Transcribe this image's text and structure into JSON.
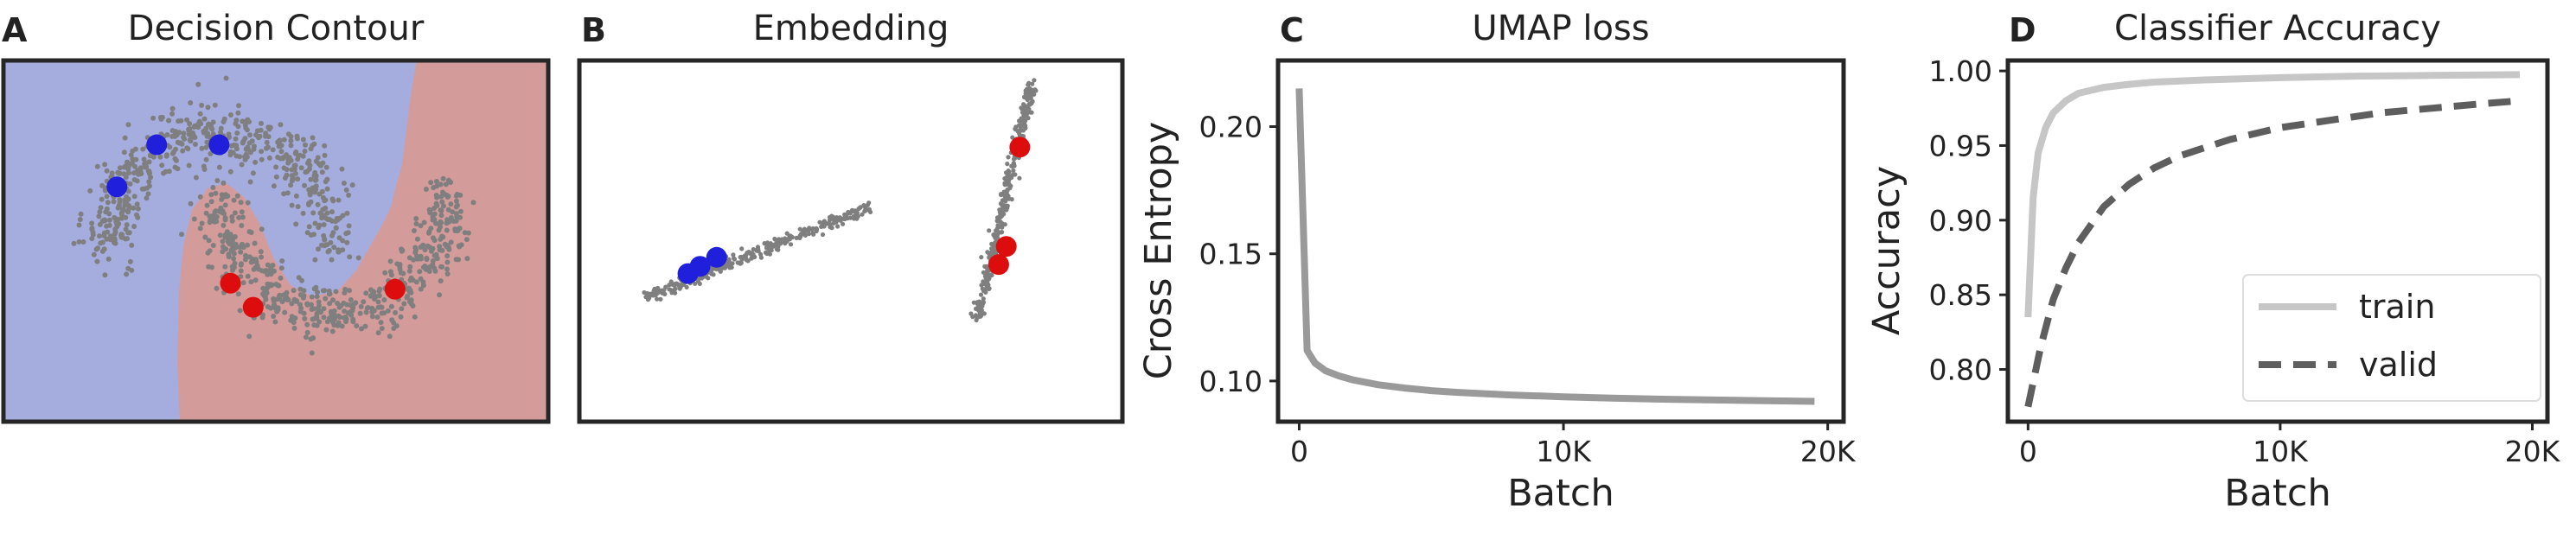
{
  "panels": {
    "a": {
      "letter": "A",
      "title": "Decision Contour"
    },
    "b": {
      "letter": "B",
      "title": "Embedding"
    },
    "c": {
      "letter": "C",
      "title": "UMAP loss"
    },
    "d": {
      "letter": "D",
      "title": "Classifier Accuracy"
    }
  },
  "colors": {
    "class0_region": "#a5addf",
    "class1_region": "#d49b9b",
    "class0_point": "#1f1fdc",
    "class1_point": "#dd0d0d",
    "sample_point": "#7f7f7f",
    "train_line": "#c6c6c6",
    "valid_line": "#5e5e5e",
    "loss_line": "#9a9a9a"
  },
  "chart_data": [
    {
      "type": "scatter",
      "panel": "A",
      "title": "Decision Contour",
      "description_free": true,
      "class0_labeled": [
        [
          -0.9,
          0.55
        ],
        [
          -0.55,
          0.9
        ],
        [
          0.0,
          0.9
        ]
      ],
      "class1_labeled": [
        [
          0.1,
          -0.25
        ],
        [
          0.3,
          -0.45
        ],
        [
          1.55,
          -0.3
        ]
      ],
      "xlim": [
        -1.9,
        2.9
      ],
      "ylim": [
        -1.4,
        1.6
      ],
      "ticks": false
    },
    {
      "type": "scatter",
      "panel": "B",
      "title": "Embedding",
      "class0_labeled": [
        [
          -2.4,
          0.1
        ],
        [
          -2.0,
          0.3
        ],
        [
          -1.45,
          0.55
        ]
      ],
      "class1_labeled": [
        [
          8.6,
          3.6
        ],
        [
          8.15,
          0.85
        ],
        [
          7.9,
          0.35
        ]
      ],
      "xlim": [
        -6,
        12
      ],
      "ylim": [
        -4,
        6
      ],
      "ticks": false
    },
    {
      "type": "line",
      "panel": "C",
      "title": "UMAP loss",
      "xlabel": "Batch",
      "ylabel": "Cross Entropy",
      "xlim": [
        -800,
        20600
      ],
      "ylim": [
        0.084,
        0.226
      ],
      "xticks": [
        {
          "v": 0,
          "label": "0"
        },
        {
          "v": 10000,
          "label": "10K"
        },
        {
          "v": 20000,
          "label": "20K"
        }
      ],
      "yticks": [
        {
          "v": 0.1,
          "label": "0.10"
        },
        {
          "v": 0.15,
          "label": "0.15"
        },
        {
          "v": 0.2,
          "label": "0.20"
        }
      ],
      "series": [
        {
          "x": [
            0,
            300,
            600,
            1000,
            1500,
            2000,
            3000,
            4000,
            5000,
            6000,
            8000,
            10000,
            12000,
            14000,
            16000,
            18000,
            19500
          ],
          "y": [
            0.215,
            0.112,
            0.107,
            0.104,
            0.102,
            0.1005,
            0.0985,
            0.0972,
            0.0962,
            0.0955,
            0.0945,
            0.0938,
            0.0932,
            0.0928,
            0.0925,
            0.0922,
            0.092
          ]
        }
      ]
    },
    {
      "type": "line",
      "panel": "D",
      "title": "Classifier Accuracy",
      "xlabel": "Batch",
      "ylabel": "Accuracy",
      "xlim": [
        -800,
        20600
      ],
      "ylim": [
        0.765,
        1.007
      ],
      "xticks": [
        {
          "v": 0,
          "label": "0"
        },
        {
          "v": 10000,
          "label": "10K"
        },
        {
          "v": 20000,
          "label": "20K"
        }
      ],
      "yticks": [
        {
          "v": 0.8,
          "label": "0.80"
        },
        {
          "v": 0.85,
          "label": "0.85"
        },
        {
          "v": 0.9,
          "label": "0.90"
        },
        {
          "v": 0.95,
          "label": "0.95"
        },
        {
          "v": 1.0,
          "label": "1.00"
        }
      ],
      "legend_position": "lower-right",
      "series": [
        {
          "name": "train",
          "style": "solid",
          "x": [
            0,
            200,
            400,
            700,
            1000,
            1500,
            2000,
            3000,
            4000,
            5000,
            7000,
            10000,
            13000,
            16000,
            19500
          ],
          "y": [
            0.835,
            0.915,
            0.945,
            0.962,
            0.972,
            0.98,
            0.985,
            0.989,
            0.991,
            0.9925,
            0.994,
            0.9955,
            0.9965,
            0.997,
            0.9975
          ]
        },
        {
          "name": "valid",
          "style": "dashed",
          "x": [
            0,
            500,
            1000,
            1500,
            2000,
            3000,
            4000,
            5000,
            6000,
            8000,
            10000,
            12000,
            14000,
            16000,
            18000,
            19500
          ],
          "y": [
            0.775,
            0.815,
            0.847,
            0.868,
            0.885,
            0.909,
            0.924,
            0.935,
            0.943,
            0.954,
            0.962,
            0.967,
            0.972,
            0.975,
            0.978,
            0.98
          ]
        }
      ]
    }
  ]
}
